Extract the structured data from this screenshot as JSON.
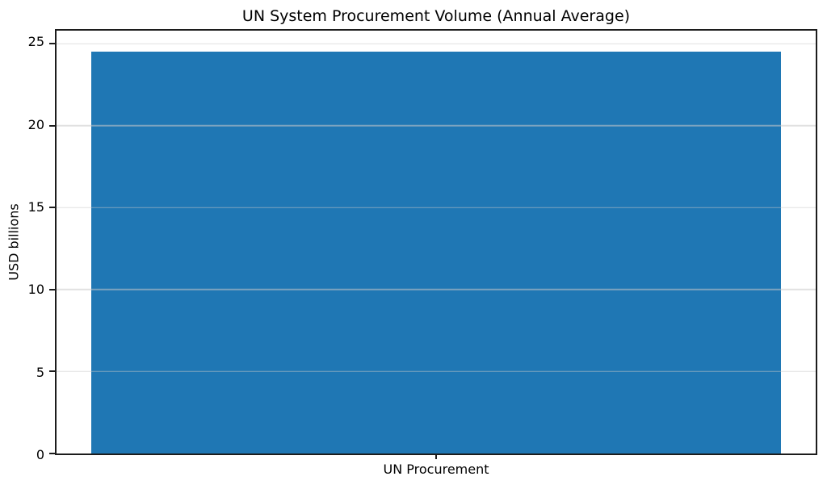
{
  "chart_data": {
    "type": "bar",
    "title": "UN System Procurement Volume (Annual Average)",
    "categories": [
      "UN Procurement"
    ],
    "values": [
      24.5
    ],
    "xlabel": "",
    "ylabel": "USD billions",
    "ylim": [
      0,
      25.8
    ],
    "yticks": [
      0,
      5,
      10,
      15,
      20,
      25
    ],
    "bar_color": "#1f77b4",
    "grid": "horizontal gridlines at y ticks, light gray, drawn above bar",
    "legend": "none",
    "background_color": "#ffffff"
  }
}
